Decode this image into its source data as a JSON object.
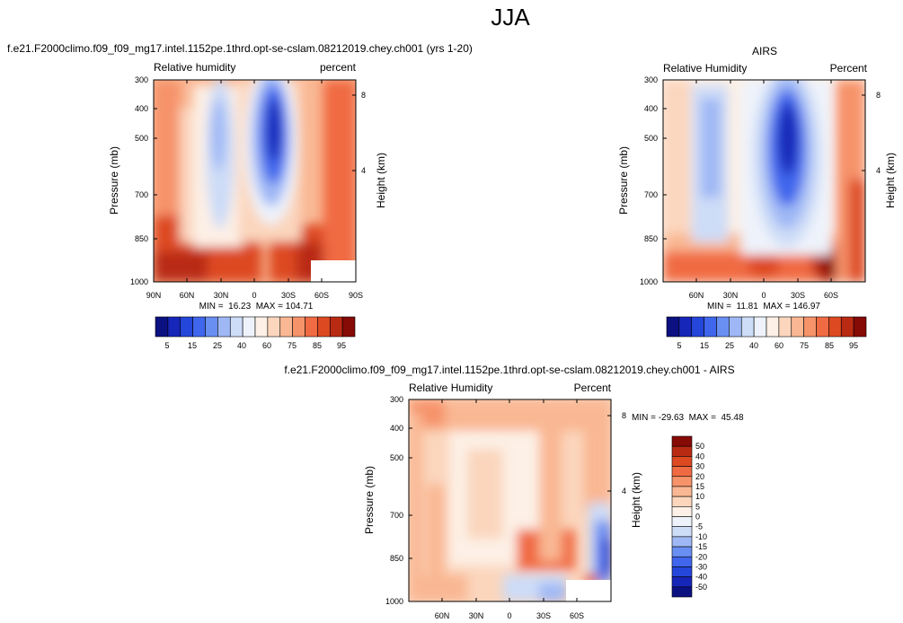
{
  "page": {
    "title": "JJA"
  },
  "chart_data": [
    {
      "type": "heatmap",
      "title": "f.e21.F2000climo.f09_f09_mg17.intel.1152pe.1thrd.opt-se-cslam.08212019.chey.ch001 (yrs 1-20)",
      "left_label": "Relative humidity",
      "right_label": "percent",
      "ylabel": "Pressure (mb)",
      "ylabel_right": "Height (km)",
      "x_ticks": [
        "90N",
        "60N",
        "30N",
        "0",
        "30S",
        "60S",
        "90S"
      ],
      "y_ticks": [
        "300",
        "400",
        "500",
        "700",
        "850",
        "1000"
      ],
      "y_ticks_right": [
        "8",
        "4"
      ],
      "stats": "MIN =  16.23  MAX = 104.71",
      "colorbar_labels": [
        "5",
        "15",
        "25",
        "40",
        "60",
        "75",
        "85",
        "95"
      ]
    },
    {
      "type": "heatmap",
      "title": "AIRS",
      "left_label": "Relative Humidity",
      "right_label": "Percent",
      "ylabel": "Pressure (mb)",
      "ylabel_right": "Height (km)",
      "x_ticks": [
        "60N",
        "30N",
        "0",
        "30S",
        "60S"
      ],
      "y_ticks": [
        "300",
        "400",
        "500",
        "700",
        "850",
        "1000"
      ],
      "y_ticks_right": [
        "8",
        "4"
      ],
      "stats": "MIN =  11.81  MAX = 146.97",
      "colorbar_labels": [
        "5",
        "15",
        "25",
        "40",
        "60",
        "75",
        "85",
        "95"
      ]
    },
    {
      "type": "heatmap",
      "title": "f.e21.F2000climo.f09_f09_mg17.intel.1152pe.1thrd.opt-se-cslam.08212019.chey.ch001 - AIRS",
      "left_label": "Relative Humidity",
      "right_label": "Percent",
      "ylabel": "Pressure (mb)",
      "ylabel_right": "Height (km)",
      "x_ticks": [
        "60N",
        "30N",
        "0",
        "30S",
        "60S"
      ],
      "y_ticks": [
        "300",
        "400",
        "500",
        "700",
        "850",
        "1000"
      ],
      "y_ticks_right": [
        "8",
        "4"
      ],
      "stats": "MIN = -29.63  MAX =  45.48",
      "colorbar_labels": [
        "50",
        "40",
        "30",
        "20",
        "15",
        "10",
        "5",
        "0",
        "-5",
        "-10",
        "-15",
        "-20",
        "-30",
        "-40",
        "-50"
      ]
    }
  ],
  "colors": {
    "scale16": [
      "#0b1180",
      "#1626b8",
      "#2546da",
      "#3f66ec",
      "#6a8ff2",
      "#9fb8f5",
      "#cddcf7",
      "#eef3fb",
      "#fdf0e6",
      "#fbd6bd",
      "#f9b793",
      "#f6936a",
      "#f06b43",
      "#dd4a22",
      "#b92a12",
      "#860a06"
    ],
    "diff16": [
      "#0b1180",
      "#1626b8",
      "#2546da",
      "#3f66ec",
      "#6a8ff2",
      "#9fb8f5",
      "#cddcf7",
      "#eef3fb",
      "#fdf0e6",
      "#fbd6bd",
      "#f9b793",
      "#f6936a",
      "#f06b43",
      "#dd4a22",
      "#b92a12",
      "#860a06"
    ]
  }
}
